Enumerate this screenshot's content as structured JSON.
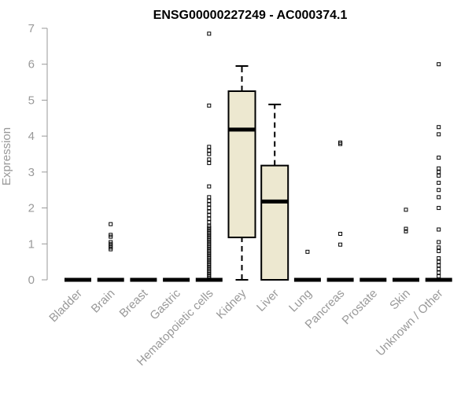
{
  "chart_data": {
    "type": "box",
    "title": "ENSG00000227249 - AC000374.1",
    "xlabel": "",
    "ylabel": "Expression",
    "ylim": [
      0,
      7
    ],
    "yticks": [
      0,
      1,
      2,
      3,
      4,
      5,
      6,
      7
    ],
    "grid": false,
    "colors": {
      "box_fill": "#EDE8D0",
      "box_stroke": "#000000",
      "axis": "#999999",
      "title": "#000000"
    },
    "categories": [
      "Bladder",
      "Brain",
      "Breast",
      "Gastric",
      "Hematopoietic cells",
      "Kidney",
      "Liver",
      "Lung",
      "Pancreas",
      "Prostate",
      "Skin",
      "Unknown / Other"
    ],
    "boxes": [
      {
        "category": "Bladder",
        "min": 0,
        "q1": 0,
        "median": 0,
        "q3": 0,
        "max": 0,
        "outliers": []
      },
      {
        "category": "Brain",
        "min": 0,
        "q1": 0,
        "median": 0,
        "q3": 0,
        "max": 0,
        "outliers": [
          0.85,
          0.9,
          0.95,
          1.0,
          1.05,
          1.2,
          1.25,
          1.55
        ]
      },
      {
        "category": "Breast",
        "min": 0,
        "q1": 0,
        "median": 0,
        "q3": 0,
        "max": 0,
        "outliers": []
      },
      {
        "category": "Gastric",
        "min": 0,
        "q1": 0,
        "median": 0,
        "q3": 0,
        "max": 0,
        "outliers": []
      },
      {
        "category": "Hematopoietic cells",
        "min": 0,
        "q1": 0,
        "median": 0,
        "q3": 0,
        "max": 0,
        "outliers": [
          0.05,
          0.1,
          0.15,
          0.2,
          0.25,
          0.3,
          0.35,
          0.4,
          0.45,
          0.5,
          0.55,
          0.6,
          0.65,
          0.7,
          0.75,
          0.8,
          0.85,
          0.9,
          0.95,
          1.0,
          1.05,
          1.1,
          1.15,
          1.2,
          1.25,
          1.3,
          1.35,
          1.4,
          1.45,
          1.5,
          1.6,
          1.7,
          1.8,
          1.9,
          2.0,
          2.1,
          2.2,
          2.3,
          2.6,
          3.25,
          3.35,
          3.5,
          3.6,
          3.7,
          4.85,
          6.85
        ]
      },
      {
        "category": "Kidney",
        "min": 0,
        "q1": 1.18,
        "median": 4.18,
        "q3": 5.25,
        "max": 5.95,
        "outliers": []
      },
      {
        "category": "Liver",
        "min": 0,
        "q1": 0,
        "median": 2.18,
        "q3": 3.18,
        "max": 4.88,
        "outliers": []
      },
      {
        "category": "Lung",
        "min": 0,
        "q1": 0,
        "median": 0,
        "q3": 0,
        "max": 0,
        "outliers": [
          0.78
        ]
      },
      {
        "category": "Pancreas",
        "min": 0,
        "q1": 0,
        "median": 0,
        "q3": 0,
        "max": 0,
        "outliers": [
          0.98,
          1.28,
          3.78,
          3.82
        ]
      },
      {
        "category": "Prostate",
        "min": 0,
        "q1": 0,
        "median": 0,
        "q3": 0,
        "max": 0,
        "outliers": []
      },
      {
        "category": "Skin",
        "min": 0,
        "q1": 0,
        "median": 0,
        "q3": 0,
        "max": 0,
        "outliers": [
          1.35,
          1.42,
          1.95
        ]
      },
      {
        "category": "Unknown / Other",
        "min": 0,
        "q1": 0,
        "median": 0,
        "q3": 0,
        "max": 0,
        "outliers": [
          0.1,
          0.2,
          0.3,
          0.4,
          0.5,
          0.6,
          0.8,
          0.9,
          1.05,
          1.4,
          2.0,
          2.3,
          2.5,
          2.7,
          2.9,
          3.0,
          3.1,
          3.4,
          4.05,
          4.25,
          6.0
        ]
      }
    ]
  }
}
